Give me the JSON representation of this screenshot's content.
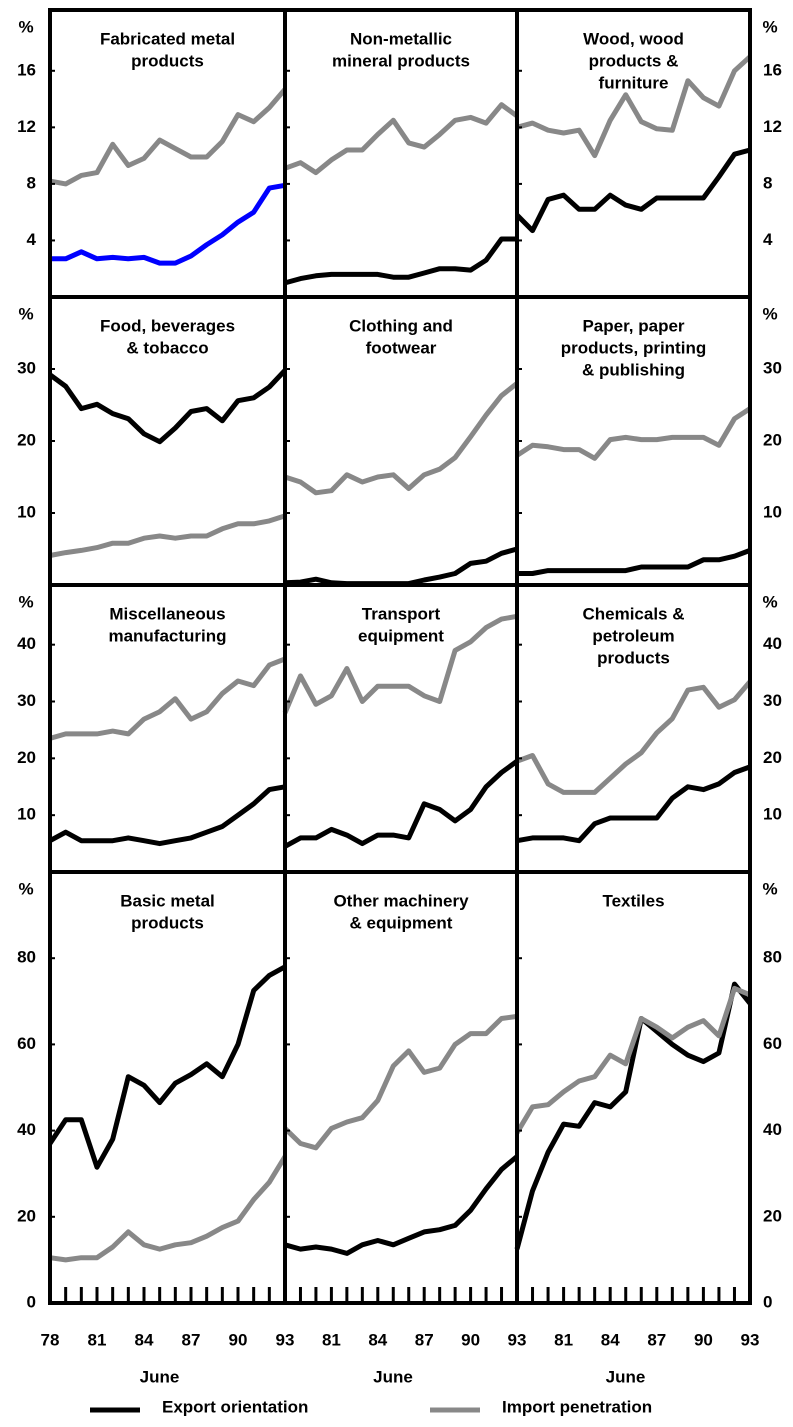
{
  "ylabel": "%",
  "legend": [
    {
      "name": "Export orientation",
      "color": "#000000"
    },
    {
      "name": "Import penetration",
      "color": "#888888"
    }
  ],
  "chart_data": [
    {
      "type": "line",
      "title": [
        "Fabricated metal",
        "products"
      ],
      "x": [
        78,
        79,
        80,
        81,
        82,
        83,
        84,
        85,
        86,
        87,
        88,
        89,
        90,
        91,
        92,
        93
      ],
      "ylim": [
        0,
        20.3
      ],
      "yticks": [
        4,
        8,
        12,
        16
      ],
      "series": [
        {
          "color": "#0000ff",
          "values": [
            2.7,
            2.7,
            3.2,
            2.7,
            2.8,
            2.7,
            2.8,
            2.4,
            2.4,
            2.9,
            3.7,
            4.4,
            5.3,
            6.0,
            7.7,
            7.9
          ]
        },
        {
          "color": "#888888",
          "values": [
            8.2,
            8.0,
            8.6,
            8.8,
            10.8,
            9.3,
            9.8,
            11.1,
            10.5,
            9.9,
            9.9,
            11.0,
            12.9,
            12.4,
            13.4,
            14.7
          ]
        }
      ]
    },
    {
      "type": "line",
      "title": [
        "Non-metallic",
        "mineral products"
      ],
      "x": [
        78,
        79,
        80,
        81,
        82,
        83,
        84,
        85,
        86,
        87,
        88,
        89,
        90,
        91,
        92,
        93
      ],
      "ylim": [
        0,
        20.3
      ],
      "yticks": [
        4,
        8,
        12,
        16
      ],
      "series": [
        {
          "color": "#000000",
          "values": [
            1.0,
            1.3,
            1.5,
            1.6,
            1.6,
            1.6,
            1.6,
            1.4,
            1.4,
            1.7,
            2.0,
            2.0,
            1.9,
            2.6,
            4.1,
            4.1
          ]
        },
        {
          "color": "#888888",
          "values": [
            9.1,
            9.5,
            8.8,
            9.7,
            10.4,
            10.4,
            11.5,
            12.5,
            10.9,
            10.6,
            11.5,
            12.5,
            12.7,
            12.3,
            13.6,
            12.8
          ]
        }
      ]
    },
    {
      "type": "line",
      "title": [
        "Wood, wood",
        "products &",
        "furniture"
      ],
      "x": [
        78,
        79,
        80,
        81,
        82,
        83,
        84,
        85,
        86,
        87,
        88,
        89,
        90,
        91,
        92,
        93
      ],
      "ylim": [
        0,
        20.3
      ],
      "yticks": [
        4,
        8,
        12,
        16
      ],
      "series": [
        {
          "color": "#000000",
          "values": [
            5.8,
            4.7,
            6.9,
            7.2,
            6.2,
            6.2,
            7.2,
            6.5,
            6.2,
            7.0,
            7.0,
            7.0,
            7.0,
            8.5,
            10.1,
            10.4
          ]
        },
        {
          "color": "#888888",
          "values": [
            12.0,
            12.3,
            11.8,
            11.6,
            11.8,
            10.0,
            12.5,
            14.3,
            12.4,
            11.9,
            11.8,
            15.3,
            14.1,
            13.5,
            16.0,
            17.0
          ]
        }
      ]
    },
    {
      "type": "line",
      "title": [
        "Food, beverages",
        "& tobacco"
      ],
      "x": [
        78,
        79,
        80,
        81,
        82,
        83,
        84,
        85,
        86,
        87,
        88,
        89,
        90,
        91,
        92,
        93
      ],
      "ylim": [
        0,
        40
      ],
      "yticks": [
        10,
        20,
        30
      ],
      "series": [
        {
          "color": "#000000",
          "values": [
            29.2,
            27.6,
            24.5,
            25.1,
            23.8,
            23.1,
            21,
            19.9,
            21.8,
            24.1,
            24.5,
            22.8,
            25.6,
            26,
            27.5,
            29.8
          ]
        },
        {
          "color": "#888888",
          "values": [
            4.1,
            4.5,
            4.8,
            5.2,
            5.8,
            5.8,
            6.5,
            6.8,
            6.5,
            6.8,
            6.8,
            7.8,
            8.5,
            8.5,
            8.9,
            9.6
          ]
        }
      ]
    },
    {
      "type": "line",
      "title": [
        "Clothing  and",
        "footwear"
      ],
      "x": [
        78,
        79,
        80,
        81,
        82,
        83,
        84,
        85,
        86,
        87,
        88,
        89,
        90,
        91,
        92,
        93
      ],
      "ylim": [
        0,
        40
      ],
      "yticks": [
        10,
        20,
        30
      ],
      "series": [
        {
          "color": "#000000",
          "values": [
            0.3,
            0.4,
            0.8,
            0.3,
            0.2,
            0.2,
            0.2,
            0.2,
            0.2,
            0.7,
            1.1,
            1.6,
            3,
            3.3,
            4.4,
            5
          ]
        },
        {
          "color": "#888888",
          "values": [
            15,
            14.3,
            12.8,
            13.1,
            15.3,
            14.3,
            15,
            15.3,
            13.4,
            15.3,
            16.1,
            17.7,
            20.6,
            23.6,
            26.3,
            28
          ]
        }
      ]
    },
    {
      "type": "line",
      "title": [
        "Paper, paper",
        "products, printing",
        "& publishing"
      ],
      "x": [
        78,
        79,
        80,
        81,
        82,
        83,
        84,
        85,
        86,
        87,
        88,
        89,
        90,
        91,
        92,
        93
      ],
      "ylim": [
        0,
        40
      ],
      "yticks": [
        10,
        20,
        30
      ],
      "series": [
        {
          "color": "#000000",
          "values": [
            1.6,
            1.6,
            2,
            2,
            2,
            2,
            2,
            2,
            2.5,
            2.5,
            2.5,
            2.5,
            3.5,
            3.5,
            4,
            4.8
          ]
        },
        {
          "color": "#888888",
          "values": [
            18,
            19.4,
            19.2,
            18.8,
            18.8,
            17.6,
            20.2,
            20.5,
            20.2,
            20.2,
            20.5,
            20.5,
            20.5,
            19.4,
            23.1,
            24.5
          ]
        }
      ]
    },
    {
      "type": "line",
      "title": [
        "Miscellaneous",
        "manufacturing"
      ],
      "x": [
        78,
        79,
        80,
        81,
        82,
        83,
        84,
        85,
        86,
        87,
        88,
        89,
        90,
        91,
        92,
        93
      ],
      "ylim": [
        0,
        50.5
      ],
      "yticks": [
        10,
        20,
        30,
        40
      ],
      "series": [
        {
          "color": "#000000",
          "values": [
            5.5,
            7,
            5.5,
            5.5,
            5.5,
            6,
            5.5,
            5,
            5.5,
            6,
            7,
            8,
            10,
            12,
            14.5,
            15
          ]
        },
        {
          "color": "#888888",
          "values": [
            23.5,
            24.3,
            24.3,
            24.3,
            24.8,
            24.3,
            26.9,
            28.2,
            30.5,
            26.9,
            28.2,
            31.4,
            33.6,
            32.8,
            36.4,
            37.5
          ]
        }
      ]
    },
    {
      "type": "line",
      "title": [
        "Transport",
        "equipment"
      ],
      "x": [
        78,
        79,
        80,
        81,
        82,
        83,
        84,
        85,
        86,
        87,
        88,
        89,
        90,
        91,
        92,
        93
      ],
      "ylim": [
        0,
        50.5
      ],
      "yticks": [
        10,
        20,
        30,
        40
      ],
      "series": [
        {
          "color": "#000000",
          "values": [
            4.5,
            6,
            6,
            7.5,
            6.5,
            5,
            6.5,
            6.5,
            6,
            12,
            11,
            9,
            11,
            15,
            17.5,
            19.5
          ]
        },
        {
          "color": "#888888",
          "values": [
            28,
            34.5,
            29.5,
            31,
            35.8,
            30,
            32.7,
            32.7,
            32.7,
            31,
            30,
            39,
            40.5,
            43,
            44.5,
            45
          ]
        }
      ]
    },
    {
      "type": "line",
      "title": [
        "Chemicals &",
        "petroleum",
        "products"
      ],
      "x": [
        78,
        79,
        80,
        81,
        82,
        83,
        84,
        85,
        86,
        87,
        88,
        89,
        90,
        91,
        92,
        93
      ],
      "ylim": [
        0,
        50.5
      ],
      "yticks": [
        10,
        20,
        30,
        40
      ],
      "series": [
        {
          "color": "#000000",
          "values": [
            5.5,
            6,
            6,
            6,
            5.5,
            8.5,
            9.5,
            9.5,
            9.5,
            9.5,
            13,
            15,
            14.5,
            15.5,
            17.5,
            18.5
          ]
        },
        {
          "color": "#888888",
          "values": [
            19.5,
            20.5,
            15.5,
            14,
            14,
            14,
            16.5,
            19,
            21,
            24.5,
            27,
            32,
            32.5,
            29,
            30.3,
            33.5
          ]
        }
      ]
    },
    {
      "type": "line",
      "title": [
        "Basic metal",
        "products"
      ],
      "x": [
        78,
        79,
        80,
        81,
        82,
        83,
        84,
        85,
        86,
        87,
        88,
        89,
        90,
        91,
        92,
        93
      ],
      "ylim": [
        0,
        100
      ],
      "yticks": [
        0,
        20,
        40,
        60,
        80
      ],
      "xticks": [
        78,
        81,
        84,
        87,
        90,
        93
      ],
      "xlabel": "June",
      "series": [
        {
          "color": "#000000",
          "values": [
            37,
            42.5,
            42.5,
            31.5,
            38,
            52.5,
            50.5,
            46.5,
            51,
            53,
            55.5,
            52.5,
            60,
            72.5,
            76,
            78
          ]
        },
        {
          "color": "#888888",
          "values": [
            10.5,
            10,
            10.5,
            10.5,
            13,
            16.5,
            13.5,
            12.5,
            13.5,
            14,
            15.5,
            17.5,
            19,
            24,
            28,
            34
          ]
        }
      ]
    },
    {
      "type": "line",
      "title": [
        "Other machinery",
        "& equipment"
      ],
      "x": [
        78,
        79,
        80,
        81,
        82,
        83,
        84,
        85,
        86,
        87,
        88,
        89,
        90,
        91,
        92,
        93
      ],
      "ylim": [
        0,
        100
      ],
      "yticks": [
        0,
        20,
        40,
        60,
        80
      ],
      "xticks": [
        81,
        84,
        87,
        90,
        93
      ],
      "xlabel": "June",
      "series": [
        {
          "color": "#000000",
          "values": [
            13.5,
            12.5,
            13,
            12.5,
            11.5,
            13.5,
            14.5,
            13.5,
            15,
            16.5,
            17,
            18,
            21.5,
            26.5,
            31,
            34
          ]
        },
        {
          "color": "#888888",
          "values": [
            40.5,
            37,
            36,
            40.5,
            42,
            43,
            47,
            55,
            58.5,
            53.5,
            54.5,
            60,
            62.5,
            62.5,
            66,
            66.5
          ]
        }
      ]
    },
    {
      "type": "line",
      "title": [
        "Textiles"
      ],
      "x": [
        78,
        79,
        80,
        81,
        82,
        83,
        84,
        85,
        86,
        87,
        88,
        89,
        90,
        91,
        92,
        93
      ],
      "ylim": [
        0,
        100
      ],
      "yticks": [
        0,
        20,
        40,
        60,
        80
      ],
      "xticks": [
        81,
        84,
        87,
        90,
        93
      ],
      "xlabel": "June",
      "series": [
        {
          "color": "#000000",
          "values": [
            12.5,
            26,
            35,
            41.5,
            41,
            46.5,
            45.5,
            49,
            66,
            63,
            60,
            57.5,
            56,
            58,
            74,
            69.5
          ]
        },
        {
          "color": "#888888",
          "values": [
            39.5,
            45.5,
            46,
            49,
            51.5,
            52.5,
            57.5,
            55.5,
            66,
            64,
            61.5,
            64,
            65.5,
            62,
            73,
            71.5
          ]
        }
      ]
    }
  ]
}
